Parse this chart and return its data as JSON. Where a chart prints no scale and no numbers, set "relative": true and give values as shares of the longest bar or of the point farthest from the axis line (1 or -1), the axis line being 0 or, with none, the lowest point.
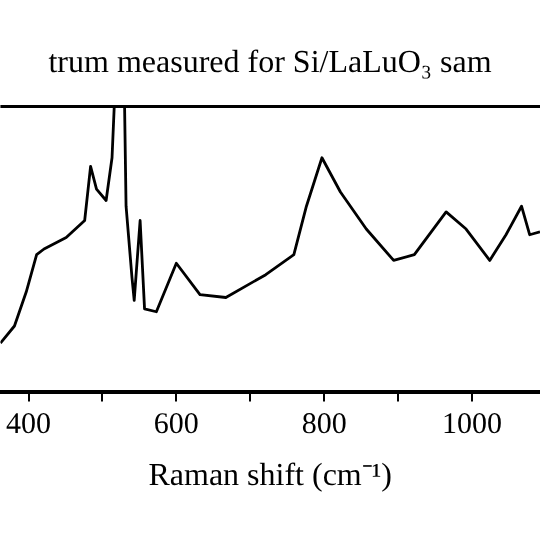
{
  "chart_data": {
    "type": "line",
    "title": "trum measured for Si/LaLuO₃ sam",
    "xlabel": "Raman shift (cm⁻¹)",
    "relative": true,
    "color": "#000000",
    "marker": "none",
    "grid": false,
    "legend": false,
    "tick_labels": "x",
    "xlim": [
      362,
      1092
    ],
    "xticks": [
      400,
      {
        "value": 500,
        "label": null
      },
      600,
      {
        "value": 700,
        "label": null
      },
      800,
      {
        "value": 900,
        "label": null
      },
      1000
    ],
    "x": [
      362,
      381,
      397,
      411,
      421,
      451,
      476,
      484,
      492,
      505,
      513,
      516,
      530,
      532,
      540,
      543,
      551,
      557,
      573,
      600,
      632,
      667,
      721,
      759,
      776,
      797,
      822,
      857,
      894,
      922,
      965,
      992,
      1024,
      1046,
      1067,
      1078,
      1092
    ],
    "values": [
      0.17,
      0.23,
      0.35,
      0.48,
      0.5,
      0.54,
      0.6,
      0.79,
      0.71,
      0.67,
      0.82,
      1,
      1,
      0.65,
      0.4,
      0.32,
      0.6,
      0.29,
      0.28,
      0.45,
      0.34,
      0.33,
      0.41,
      0.48,
      0.65,
      0.82,
      0.7,
      0.57,
      0.46,
      0.48,
      0.63,
      0.57,
      0.46,
      0.55,
      0.65,
      0.55,
      0.56
    ]
  }
}
